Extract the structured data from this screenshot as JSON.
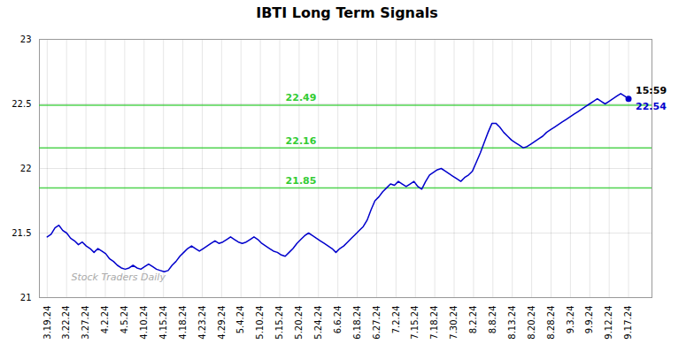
{
  "chart_data": {
    "type": "line",
    "title": "IBTI Long Term Signals",
    "color": "#0000cc",
    "marker": "last_point",
    "grid": true,
    "tick_labels": true,
    "xlim": [
      -2,
      155
    ],
    "xticks": [
      {
        "value": 0,
        "label": "3.19.24"
      },
      {
        "value": 4.9667,
        "label": "3.22.24"
      },
      {
        "value": 9.9333,
        "label": "3.27.24"
      },
      {
        "value": 14.9,
        "label": "4.2.24"
      },
      {
        "value": 19.8667,
        "label": "4.5.24"
      },
      {
        "value": 24.8333,
        "label": "4.10.24"
      },
      {
        "value": 29.8,
        "label": "4.15.24"
      },
      {
        "value": 34.7667,
        "label": "4.18.24"
      },
      {
        "value": 39.7333,
        "label": "4.23.24"
      },
      {
        "value": 44.7,
        "label": "4.29.24"
      },
      {
        "value": 49.6667,
        "label": "5.4.24"
      },
      {
        "value": 54.6333,
        "label": "5.10.24"
      },
      {
        "value": 59.6,
        "label": "5.15.24"
      },
      {
        "value": 64.5667,
        "label": "5.20.24"
      },
      {
        "value": 69.5333,
        "label": "5.24.24"
      },
      {
        "value": 74.5,
        "label": "6.6.24"
      },
      {
        "value": 79.4667,
        "label": "6.18.24"
      },
      {
        "value": 84.4333,
        "label": "6.27.24"
      },
      {
        "value": 89.4,
        "label": "7.2.24"
      },
      {
        "value": 94.3667,
        "label": "7.15.24"
      },
      {
        "value": 99.3333,
        "label": "7.18.24"
      },
      {
        "value": 104.3,
        "label": "7.30.24"
      },
      {
        "value": 109.2667,
        "label": "8.2.24"
      },
      {
        "value": 114.2333,
        "label": "8.8.24"
      },
      {
        "value": 119.2,
        "label": "8.13.24"
      },
      {
        "value": 124.1667,
        "label": "8.20.24"
      },
      {
        "value": 129.1333,
        "label": "8.28.24"
      },
      {
        "value": 134.1,
        "label": "9.3.24"
      },
      {
        "value": 139.0667,
        "label": "9.9.24"
      },
      {
        "value": 144.0333,
        "label": "9.12.24"
      },
      {
        "value": 149,
        "label": "9.17.24"
      }
    ],
    "ylim": [
      21.0,
      23.0
    ],
    "yticks": [
      21,
      21.5,
      22,
      22.5,
      23
    ],
    "values": [
      21.47,
      21.49,
      21.54,
      21.56,
      21.52,
      21.5,
      21.46,
      21.44,
      21.41,
      21.43,
      21.4,
      21.38,
      21.35,
      21.38,
      21.36,
      21.34,
      21.3,
      21.28,
      21.25,
      21.23,
      21.22,
      21.23,
      21.25,
      21.23,
      21.22,
      21.24,
      21.26,
      21.24,
      21.22,
      21.21,
      21.2,
      21.21,
      21.25,
      21.28,
      21.32,
      21.35,
      21.38,
      21.4,
      21.38,
      21.36,
      21.38,
      21.4,
      21.42,
      21.44,
      21.42,
      21.43,
      21.45,
      21.47,
      21.45,
      21.43,
      21.42,
      21.43,
      21.45,
      21.47,
      21.45,
      21.42,
      21.4,
      21.38,
      21.36,
      21.35,
      21.33,
      21.32,
      21.35,
      21.38,
      21.42,
      21.45,
      21.48,
      21.5,
      21.48,
      21.46,
      21.44,
      21.42,
      21.4,
      21.38,
      21.35,
      21.38,
      21.4,
      21.43,
      21.46,
      21.49,
      21.52,
      21.55,
      21.6,
      21.68,
      21.75,
      21.78,
      21.82,
      21.85,
      21.88,
      21.87,
      21.9,
      21.88,
      21.86,
      21.88,
      21.9,
      21.86,
      21.84,
      21.9,
      21.95,
      21.97,
      21.99,
      22.0,
      21.98,
      21.96,
      21.94,
      21.92,
      21.9,
      21.93,
      21.95,
      21.98,
      22.05,
      22.12,
      22.2,
      22.28,
      22.35,
      22.35,
      22.32,
      22.28,
      22.25,
      22.22,
      22.2,
      22.18,
      22.16,
      22.17,
      22.19,
      22.21,
      22.23,
      22.25,
      22.28,
      22.3,
      22.32,
      22.34,
      22.36,
      22.38,
      22.4,
      22.42,
      22.44,
      22.46,
      22.48,
      22.5,
      22.52,
      22.54,
      22.52,
      22.5,
      22.52,
      22.54,
      22.56,
      22.58,
      22.56,
      22.54
    ],
    "hlines": [
      {
        "y": 22.49,
        "label": "22.49",
        "color": "#33cc33"
      },
      {
        "y": 22.16,
        "label": "22.16",
        "color": "#33cc33"
      },
      {
        "y": 21.85,
        "label": "21.85",
        "color": "#33cc33"
      }
    ],
    "annotations": [
      {
        "text": "15:59",
        "color": "#000000"
      },
      {
        "text": "22.54",
        "color": "#0000cc"
      }
    ],
    "watermark": {
      "text": "Stock Traders Daily",
      "color": "#aaaaaa"
    }
  }
}
